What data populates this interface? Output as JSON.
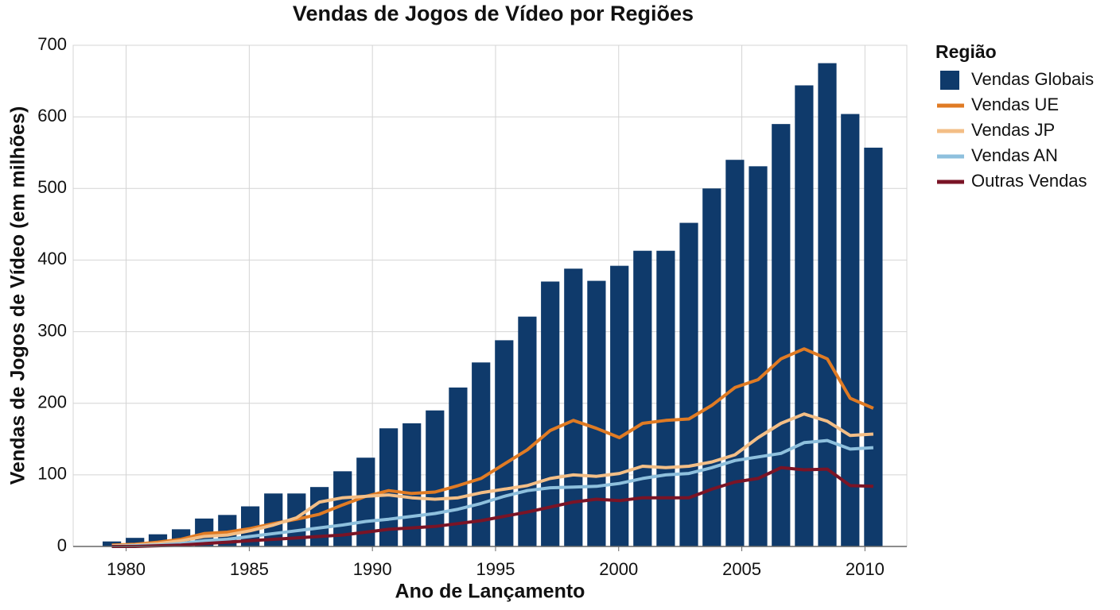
{
  "chart_data": {
    "type": "bar_line",
    "title": "Vendas de Jogos de Vídeo por Regiões",
    "x_label": "Ano de Lançamento",
    "y_label": "Vendas de Jogos de Vídeo (em milhões)",
    "legend_title": "Região",
    "legend": "right",
    "grid": true,
    "xlim": [
      1977.85,
      2011.7
    ],
    "xticks": [
      1980,
      1985,
      1990,
      1995,
      2000,
      2005,
      2010
    ],
    "ylim": [
      0,
      700
    ],
    "yticks": [
      0,
      100,
      200,
      300,
      400,
      500,
      600,
      700
    ],
    "x": [
      1979.42,
      1980.36,
      1981.29,
      1982.23,
      1983.17,
      1984.11,
      1985.04,
      1985.98,
      1986.92,
      1987.85,
      1988.79,
      1989.73,
      1990.66,
      1991.6,
      1992.54,
      1993.48,
      1994.41,
      1995.35,
      1996.29,
      1997.22,
      1998.16,
      1999.1,
      2000.03,
      2000.97,
      2001.91,
      2002.85,
      2003.78,
      2004.72,
      2005.66,
      2006.59,
      2007.53,
      2008.47,
      2009.4,
      2010.34
    ],
    "series": [
      {
        "name": "Vendas Globais",
        "type": "bar",
        "color": "#0f3a6b",
        "values": [
          7,
          12,
          17,
          24,
          39,
          44,
          56,
          74,
          74,
          83,
          105,
          124,
          165,
          172,
          190,
          222,
          257,
          288,
          321,
          370,
          388,
          371,
          392,
          413,
          413,
          452,
          500,
          540,
          531,
          590,
          644,
          675,
          604,
          557
        ]
      },
      {
        "name": "Vendas UE",
        "type": "line",
        "color": "#e07b24",
        "values": [
          2,
          3,
          6,
          10,
          18,
          20,
          25,
          32,
          38,
          45,
          58,
          70,
          78,
          74,
          76,
          85,
          95,
          115,
          135,
          162,
          176,
          165,
          152,
          172,
          176,
          178,
          197,
          222,
          233,
          262,
          276,
          262,
          207,
          193
        ]
      },
      {
        "name": "Vendas JP",
        "type": "line",
        "color": "#f3be86",
        "values": [
          1,
          2,
          4,
          8,
          14,
          16,
          22,
          30,
          40,
          62,
          68,
          70,
          72,
          68,
          66,
          68,
          75,
          80,
          85,
          95,
          100,
          98,
          102,
          112,
          110,
          112,
          118,
          128,
          152,
          172,
          185,
          175,
          155,
          157
        ]
      },
      {
        "name": "Vendas AN",
        "type": "line",
        "color": "#8ec0dd",
        "values": [
          0,
          1,
          2,
          4,
          8,
          10,
          14,
          18,
          22,
          26,
          30,
          35,
          38,
          42,
          46,
          52,
          60,
          70,
          78,
          82,
          83,
          84,
          88,
          95,
          100,
          102,
          110,
          120,
          125,
          130,
          145,
          148,
          136,
          138
        ]
      },
      {
        "name": "Outras Vendas",
        "type": "line",
        "color": "#7a1426",
        "values": [
          0,
          0,
          1,
          2,
          4,
          6,
          8,
          10,
          12,
          14,
          16,
          20,
          24,
          26,
          28,
          32,
          36,
          42,
          48,
          55,
          62,
          66,
          64,
          68,
          68,
          68,
          80,
          90,
          95,
          110,
          107,
          108,
          85,
          84
        ]
      }
    ]
  }
}
